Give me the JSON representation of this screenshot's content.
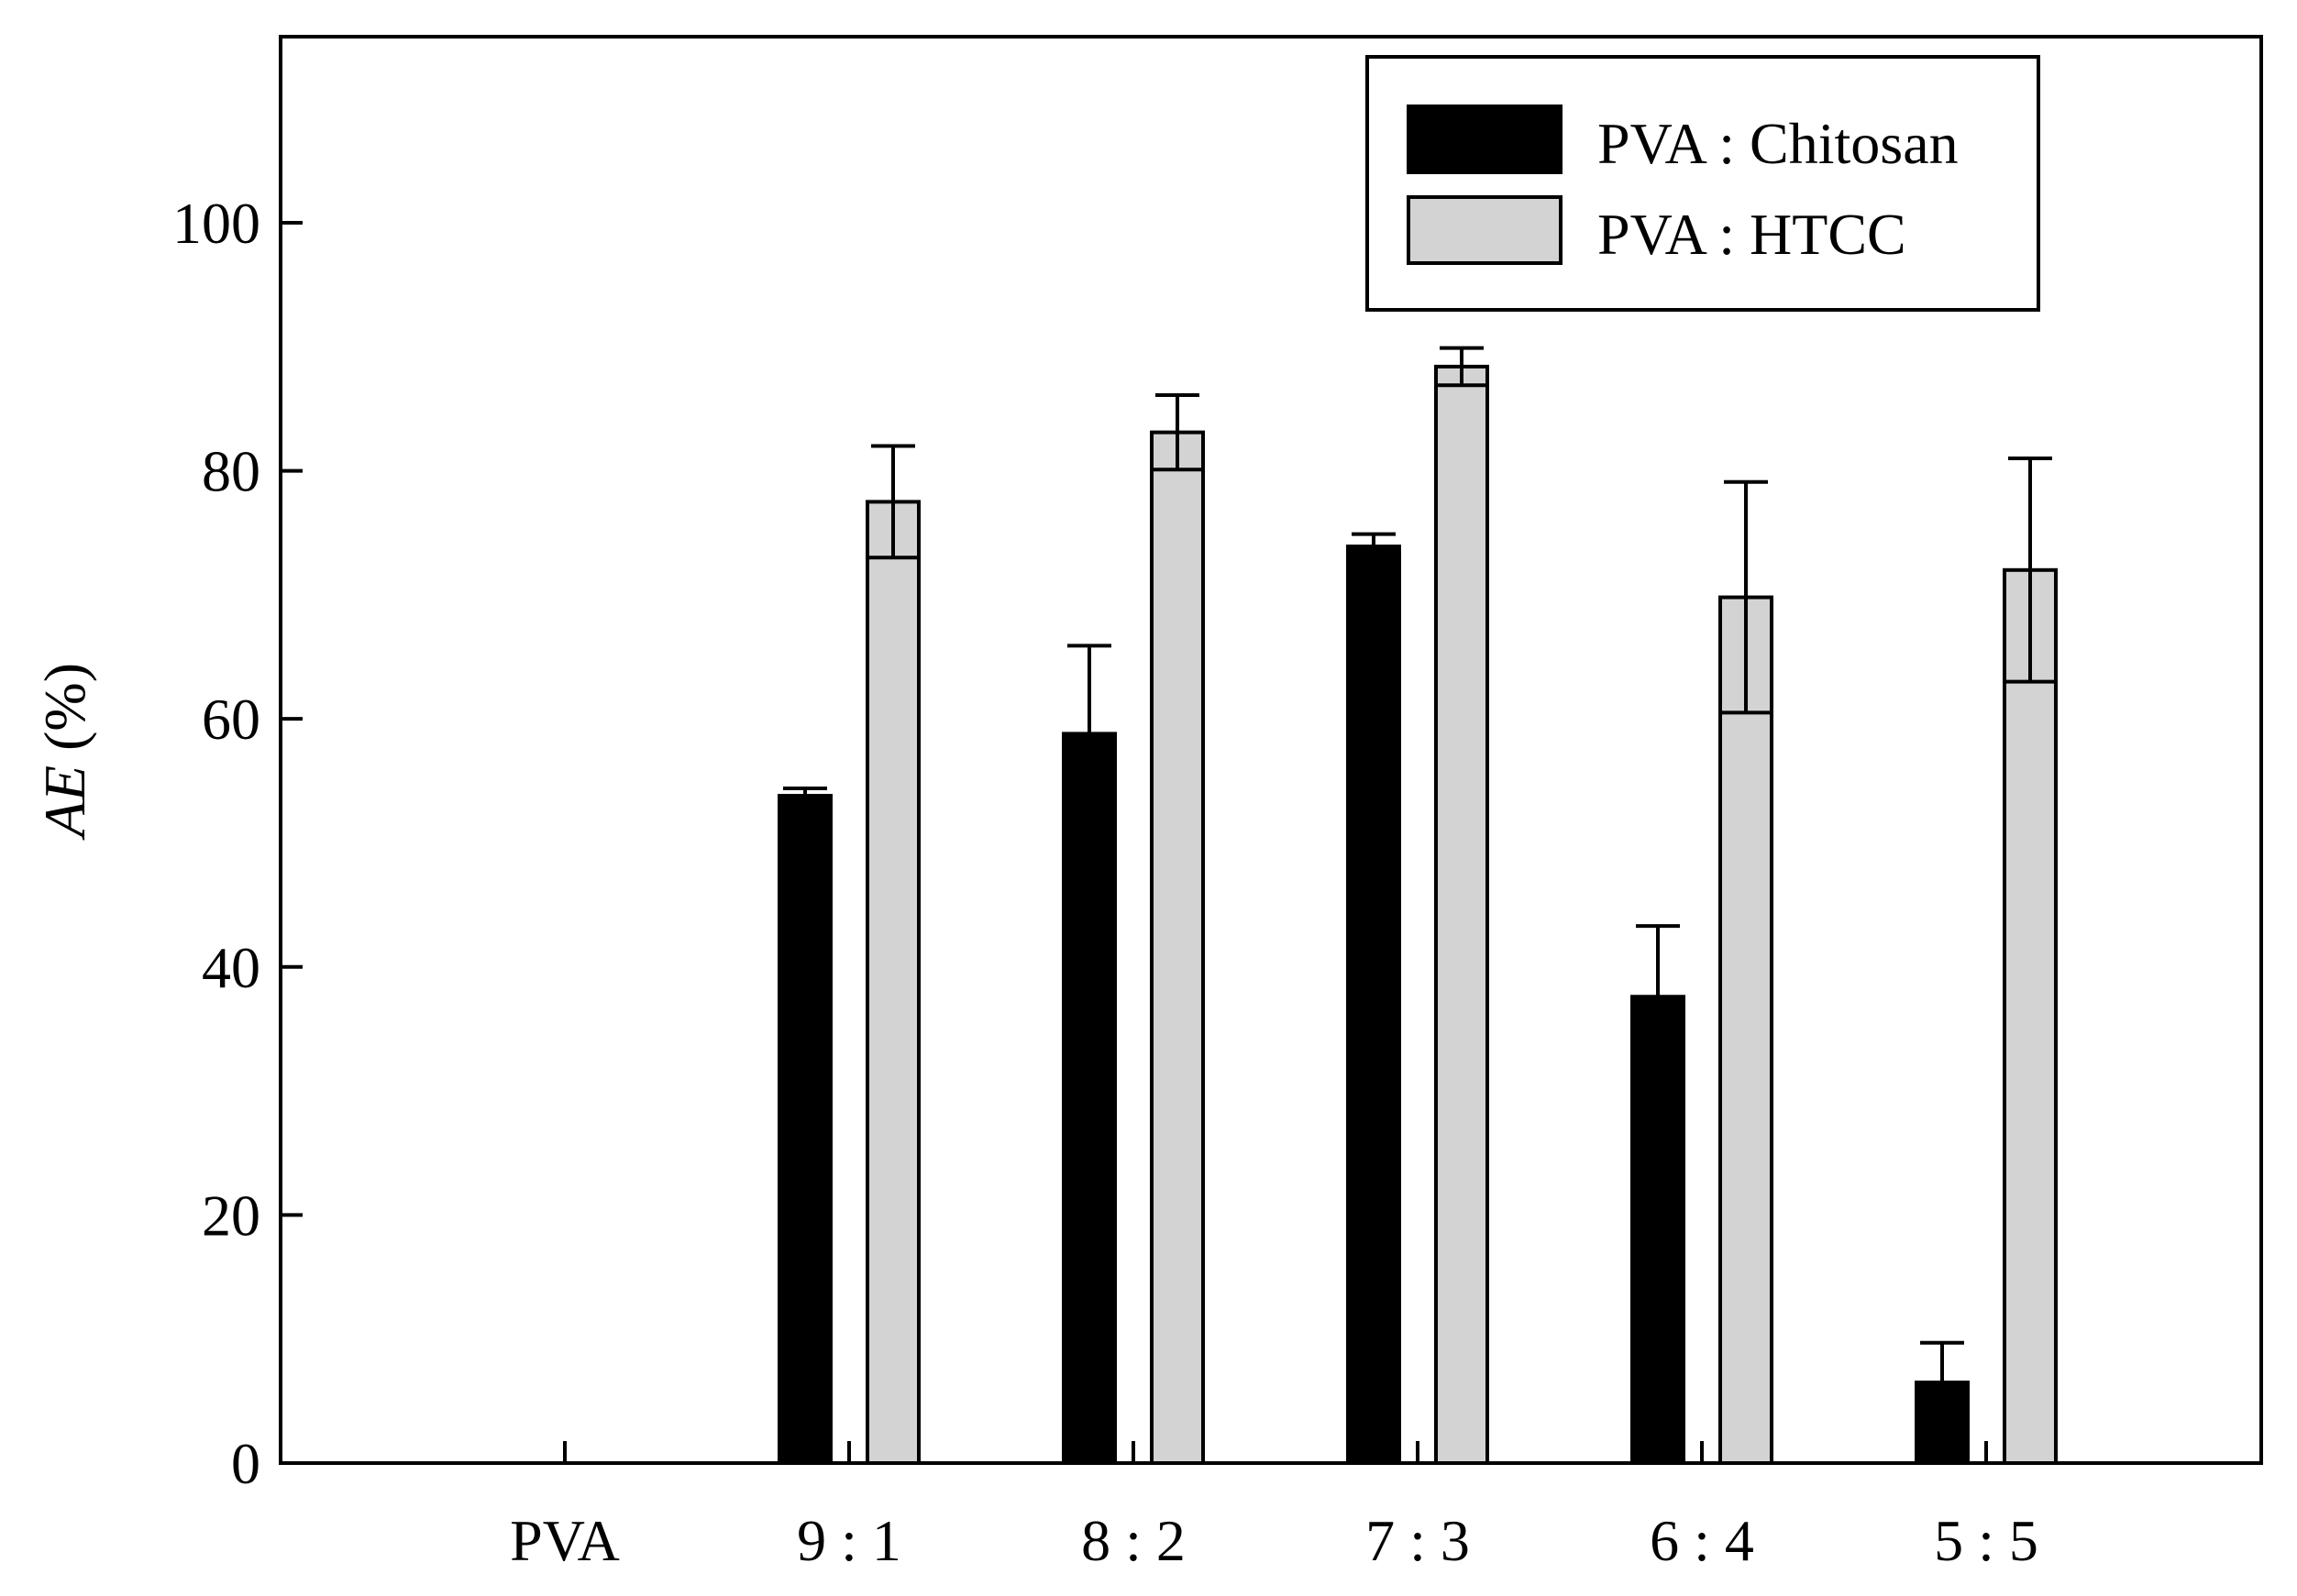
{
  "chart_data": {
    "type": "bar",
    "categories": [
      "PVA",
      "9 : 1",
      "8 : 2",
      "7 : 3",
      "6 : 4",
      "5 : 5"
    ],
    "series": [
      {
        "name": "PVA : Chitosan",
        "color": "#000000",
        "values": [
          0,
          53.8,
          58.8,
          73.9,
          37.6,
          6.5
        ],
        "errors": [
          0,
          0.6,
          7.1,
          1.0,
          5.7,
          3.2
        ]
      },
      {
        "name": "PVA : HTCC",
        "color": "#d3d3d3",
        "values": [
          0,
          77.5,
          83.1,
          88.4,
          69.8,
          72.0
        ],
        "errors": [
          0,
          4.5,
          3.0,
          1.5,
          9.3,
          9.0
        ]
      }
    ],
    "title": "",
    "xlabel": "",
    "ylabel": {
      "italic": "AE",
      "plain": " (%)"
    },
    "ylim": [
      0,
      115
    ],
    "yticks": [
      0,
      20,
      40,
      60,
      80,
      100
    ],
    "grid": false,
    "legend_position": "top-right"
  }
}
